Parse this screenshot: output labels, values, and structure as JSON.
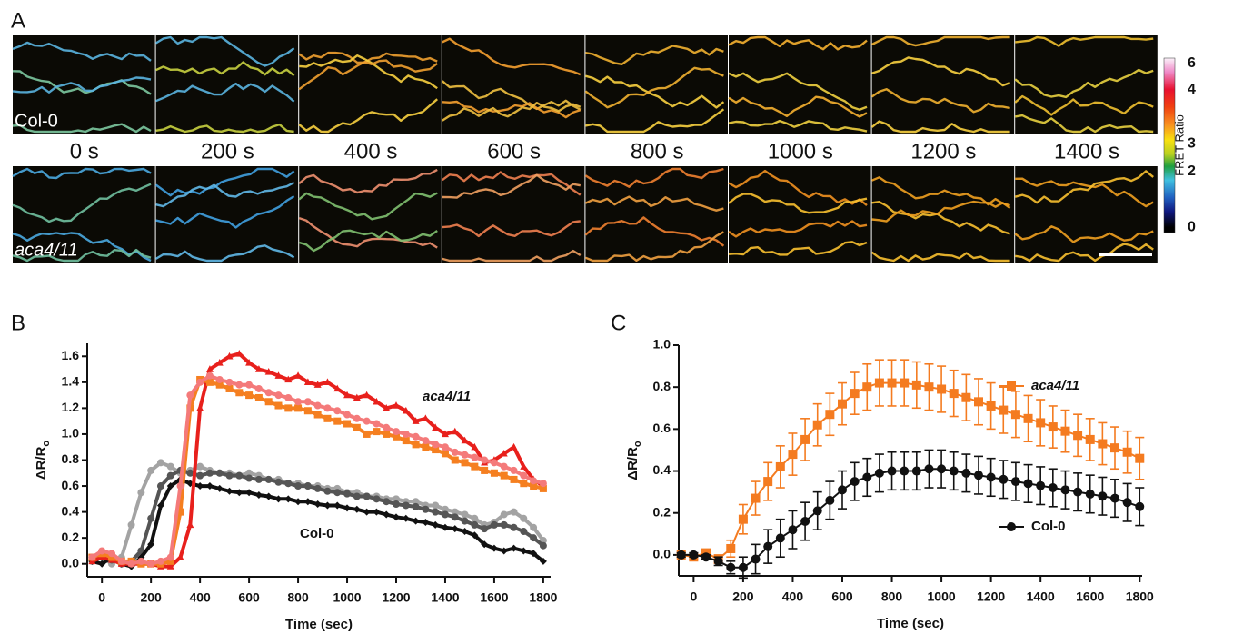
{
  "panel_a": {
    "label": "A",
    "rows": [
      "Col-0",
      "aca4/11"
    ],
    "times": [
      "0 s",
      "200 s",
      "400 s",
      "600 s",
      "800 s",
      "1000 s",
      "1200 s",
      "1400 s"
    ],
    "colorbar": {
      "label": "FRET Ratio",
      "ticks": [
        6,
        4,
        3,
        2,
        0
      ]
    }
  },
  "chart_data": [
    {
      "type": "line",
      "label": "B",
      "x_label": "Time (sec)",
      "y_label": {
        "main": "ΔR/R",
        "sub": "o"
      },
      "annotations": [
        "aca4/11",
        "Col-0"
      ],
      "xlim": [
        -60,
        1830
      ],
      "xticks": [
        0,
        200,
        400,
        600,
        800,
        1000,
        1200,
        1400,
        1600,
        1800
      ],
      "ylim": [
        -0.1,
        1.7
      ],
      "yticks": [
        {
          "value": 0,
          "label": "0.0"
        },
        0.2,
        0.4,
        0.6,
        0.8,
        {
          "value": 1,
          "label": "1.0"
        },
        1.2,
        1.4,
        1.6
      ],
      "x": [
        -40,
        0,
        40,
        80,
        120,
        160,
        200,
        240,
        280,
        320,
        360,
        400,
        440,
        480,
        520,
        560,
        600,
        640,
        680,
        720,
        760,
        800,
        840,
        880,
        920,
        960,
        1000,
        1040,
        1080,
        1120,
        1160,
        1200,
        1240,
        1280,
        1320,
        1360,
        1400,
        1440,
        1480,
        1520,
        1560,
        1600,
        1640,
        1680,
        1720,
        1760,
        1800
      ],
      "series": [
        {
          "color": "#a3a3a3",
          "marker": "circle",
          "values": [
            0.02,
            0.05,
            0,
            0.05,
            0.3,
            0.55,
            0.72,
            0.78,
            0.75,
            0.7,
            0.72,
            0.75,
            0.72,
            0.7,
            0.7,
            0.68,
            0.7,
            0.68,
            0.65,
            0.65,
            0.62,
            0.62,
            0.6,
            0.6,
            0.58,
            0.58,
            0.55,
            0.55,
            0.52,
            0.52,
            0.5,
            0.5,
            0.48,
            0.48,
            0.45,
            0.45,
            0.42,
            0.4,
            0.38,
            0.35,
            0.3,
            0.32,
            0.38,
            0.4,
            0.35,
            0.28,
            0.18
          ]
        },
        {
          "color": "#555555",
          "marker": "circle",
          "values": [
            0.05,
            0.08,
            0.03,
            0,
            0.02,
            0.1,
            0.35,
            0.6,
            0.68,
            0.72,
            0.7,
            0.68,
            0.7,
            0.7,
            0.68,
            0.68,
            0.66,
            0.65,
            0.65,
            0.63,
            0.62,
            0.6,
            0.6,
            0.58,
            0.56,
            0.55,
            0.54,
            0.52,
            0.52,
            0.5,
            0.48,
            0.46,
            0.45,
            0.44,
            0.42,
            0.4,
            0.38,
            0.36,
            0.33,
            0.3,
            0.27,
            0.3,
            0.3,
            0.28,
            0.25,
            0.2,
            0.14
          ]
        },
        {
          "color": "#111111",
          "marker": "diamond",
          "values": [
            0.02,
            0,
            0.05,
            0,
            -0.02,
            0.05,
            0.15,
            0.45,
            0.6,
            0.65,
            0.62,
            0.6,
            0.6,
            0.58,
            0.56,
            0.55,
            0.55,
            0.53,
            0.52,
            0.5,
            0.5,
            0.48,
            0.48,
            0.46,
            0.45,
            0.45,
            0.43,
            0.42,
            0.4,
            0.4,
            0.38,
            0.36,
            0.35,
            0.33,
            0.32,
            0.3,
            0.28,
            0.27,
            0.25,
            0.22,
            0.15,
            0.12,
            0.1,
            0.12,
            0.1,
            0.08,
            0.02
          ]
        },
        {
          "color": "#e8201c",
          "marker": "triangle",
          "values": [
            0.02,
            0.05,
            0.03,
            0,
            0,
            0,
            0,
            -0.02,
            -0.02,
            0.05,
            0.3,
            1.2,
            1.5,
            1.55,
            1.6,
            1.62,
            1.55,
            1.5,
            1.48,
            1.45,
            1.42,
            1.45,
            1.4,
            1.38,
            1.4,
            1.35,
            1.3,
            1.28,
            1.3,
            1.25,
            1.2,
            1.22,
            1.18,
            1.1,
            1.12,
            1.05,
            1,
            1.02,
            0.95,
            0.9,
            0.78,
            0.8,
            0.85,
            0.9,
            0.75,
            0.65,
            0.6
          ]
        },
        {
          "color": "#f57f20",
          "marker": "square",
          "values": [
            0.05,
            0.08,
            0.05,
            0.02,
            0.02,
            0,
            0,
            0,
            0.02,
            0.4,
            1.2,
            1.42,
            1.4,
            1.38,
            1.35,
            1.32,
            1.3,
            1.28,
            1.25,
            1.22,
            1.2,
            1.2,
            1.18,
            1.15,
            1.12,
            1.1,
            1.08,
            1.05,
            1,
            1.02,
            1,
            0.98,
            0.95,
            0.92,
            0.9,
            0.88,
            0.85,
            0.8,
            0.78,
            0.75,
            0.72,
            0.7,
            0.68,
            0.65,
            0.62,
            0.6,
            0.58
          ]
        },
        {
          "color": "#f47a7a",
          "marker": "circle",
          "values": [
            0.05,
            0.1,
            0.08,
            0.02,
            0,
            0.02,
            0,
            0.02,
            0.05,
            0.6,
            1.3,
            1.4,
            1.45,
            1.42,
            1.4,
            1.38,
            1.38,
            1.35,
            1.32,
            1.3,
            1.28,
            1.25,
            1.25,
            1.22,
            1.2,
            1.18,
            1.15,
            1.12,
            1.1,
            1.08,
            1.05,
            1.02,
            1,
            0.98,
            0.95,
            0.92,
            0.9,
            0.86,
            0.84,
            0.82,
            0.8,
            0.78,
            0.75,
            0.72,
            0.68,
            0.64,
            0.62
          ]
        }
      ]
    },
    {
      "type": "line",
      "label": "C",
      "x_label": "Time (sec)",
      "y_label": {
        "main": "ΔR/R",
        "sub": "o"
      },
      "xlim": [
        -60,
        1810
      ],
      "xticks": [
        0,
        200,
        400,
        600,
        800,
        1000,
        1200,
        1400,
        1600,
        1800
      ],
      "ylim": [
        -0.1,
        1.0
      ],
      "yticks": [
        {
          "value": 0,
          "label": "0.0"
        },
        0.2,
        0.4,
        0.6,
        0.8,
        {
          "value": 1,
          "label": "1.0"
        }
      ],
      "x": [
        -50,
        0,
        50,
        100,
        150,
        200,
        250,
        300,
        350,
        400,
        450,
        500,
        550,
        600,
        650,
        700,
        750,
        800,
        850,
        900,
        950,
        1000,
        1050,
        1100,
        1150,
        1200,
        1250,
        1300,
        1350,
        1400,
        1450,
        1500,
        1550,
        1600,
        1650,
        1700,
        1750,
        1800
      ],
      "series": [
        {
          "name": "aca4/11",
          "color": "#f47b20",
          "marker": "square",
          "values": [
            0,
            -0.01,
            0.01,
            -0.02,
            0.03,
            0.17,
            0.27,
            0.35,
            0.42,
            0.48,
            0.55,
            0.62,
            0.67,
            0.72,
            0.77,
            0.8,
            0.82,
            0.82,
            0.82,
            0.81,
            0.8,
            0.79,
            0.77,
            0.75,
            0.73,
            0.71,
            0.69,
            0.67,
            0.65,
            0.63,
            0.61,
            0.59,
            0.57,
            0.55,
            0.53,
            0.51,
            0.49,
            0.46
          ],
          "errors": [
            0.01,
            0.01,
            0.01,
            0.02,
            0.04,
            0.07,
            0.08,
            0.09,
            0.1,
            0.1,
            0.1,
            0.1,
            0.1,
            0.1,
            0.1,
            0.11,
            0.11,
            0.11,
            0.11,
            0.11,
            0.11,
            0.11,
            0.11,
            0.11,
            0.11,
            0.11,
            0.11,
            0.11,
            0.11,
            0.11,
            0.1,
            0.1,
            0.1,
            0.1,
            0.1,
            0.1,
            0.1,
            0.1
          ]
        },
        {
          "name": "Col-0",
          "color": "#111111",
          "marker": "circle",
          "values": [
            0,
            0,
            -0.01,
            -0.03,
            -0.06,
            -0.06,
            -0.02,
            0.04,
            0.08,
            0.12,
            0.16,
            0.21,
            0.26,
            0.31,
            0.35,
            0.37,
            0.39,
            0.4,
            0.4,
            0.4,
            0.41,
            0.41,
            0.4,
            0.39,
            0.38,
            0.37,
            0.36,
            0.35,
            0.34,
            0.33,
            0.32,
            0.31,
            0.3,
            0.29,
            0.28,
            0.27,
            0.25,
            0.23
          ],
          "errors": [
            0.01,
            0.01,
            0.01,
            0.02,
            0.03,
            0.05,
            0.07,
            0.08,
            0.09,
            0.09,
            0.09,
            0.09,
            0.09,
            0.09,
            0.09,
            0.09,
            0.09,
            0.09,
            0.09,
            0.09,
            0.09,
            0.09,
            0.09,
            0.09,
            0.09,
            0.09,
            0.09,
            0.09,
            0.09,
            0.09,
            0.09,
            0.09,
            0.09,
            0.09,
            0.09,
            0.09,
            0.09,
            0.09
          ]
        }
      ]
    }
  ]
}
